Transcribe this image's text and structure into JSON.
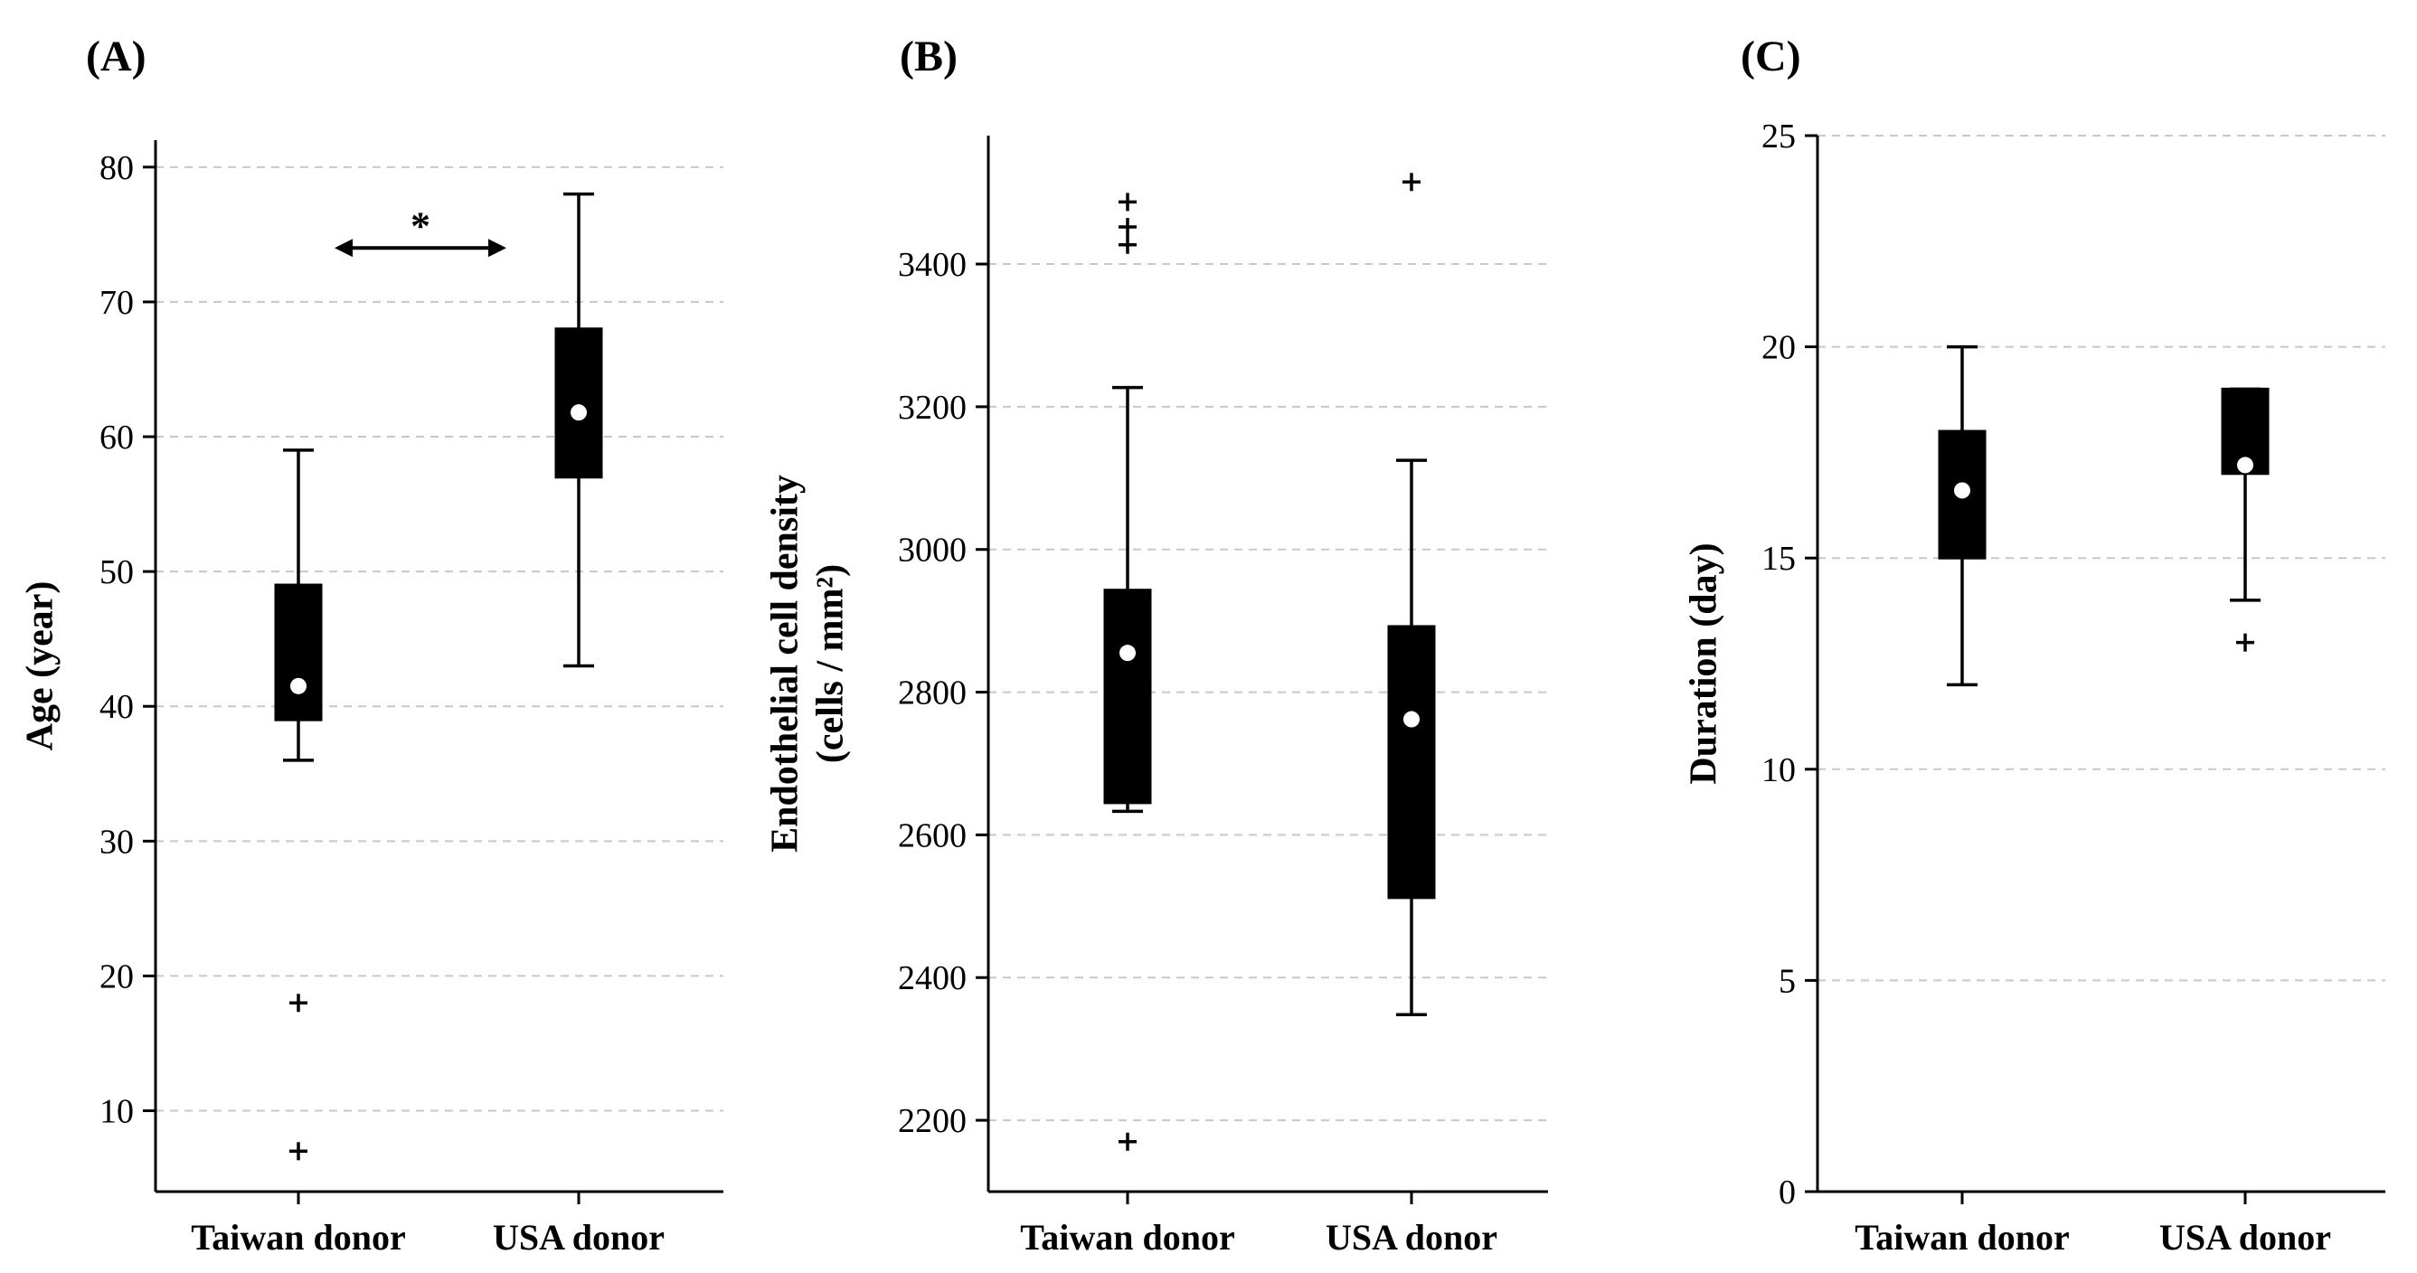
{
  "chart_data": [
    {
      "type": "box",
      "panel_label": "(A)",
      "ylabel": "Age (year)",
      "ylabel_lines": [
        "Age (year)"
      ],
      "ylim": [
        4,
        82
      ],
      "yticks": [
        10,
        20,
        30,
        40,
        50,
        60,
        70,
        80
      ],
      "ytick_labels": [
        "10",
        "20",
        "30",
        "40",
        "50",
        "60",
        "70",
        "80"
      ],
      "grid": true,
      "categories": [
        "Taiwan donor",
        "USA donor"
      ],
      "boxes": [
        {
          "category": "Taiwan donor",
          "whisker_low": 36,
          "q1": 39,
          "median": 40,
          "q3": 49,
          "whisker_high": 59,
          "mean": 41.5,
          "outliers": [
            18,
            7
          ]
        },
        {
          "category": "USA donor",
          "whisker_low": 43,
          "q1": 57,
          "median": 62,
          "q3": 68,
          "whisker_high": 78,
          "mean": 61.8,
          "outliers": []
        }
      ],
      "annotation": {
        "text": "*",
        "type": "double-arrow",
        "y": 74,
        "between": [
          "Taiwan donor",
          "USA donor"
        ]
      }
    },
    {
      "type": "box",
      "panel_label": "(B)",
      "ylabel": "Endothelial cell density (cells / mm²)",
      "ylabel_lines": [
        "Endothelial cell density",
        "(cells / mm²)"
      ],
      "ylim": [
        2100,
        3580
      ],
      "yticks": [
        2200,
        2400,
        2600,
        2800,
        3000,
        3200,
        3400
      ],
      "ytick_labels": [
        "2200",
        "2400",
        "2600",
        "2800",
        "3000",
        "3200",
        "3400"
      ],
      "grid": true,
      "categories": [
        "Taiwan donor",
        "USA donor"
      ],
      "boxes": [
        {
          "category": "Taiwan donor",
          "whisker_low": 2633,
          "q1": 2645,
          "median": 2860,
          "q3": 2943,
          "whisker_high": 3227,
          "mean": 2855,
          "outliers": [
            3487,
            3452,
            3427,
            2170
          ]
        },
        {
          "category": "USA donor",
          "whisker_low": 2348,
          "q1": 2512,
          "median": 2700,
          "q3": 2892,
          "whisker_high": 3125,
          "mean": 2762,
          "outliers": [
            3515
          ]
        }
      ]
    },
    {
      "type": "box",
      "panel_label": "(C)",
      "ylabel": "Duration (day)",
      "ylabel_lines": [
        "Duration (day)"
      ],
      "ylim": [
        0,
        25
      ],
      "yticks": [
        0,
        5,
        10,
        15,
        20,
        25
      ],
      "ytick_labels": [
        "0",
        "5",
        "10",
        "15",
        "20",
        "25"
      ],
      "grid": true,
      "categories": [
        "Taiwan donor",
        "USA donor"
      ],
      "boxes": [
        {
          "category": "Taiwan donor",
          "whisker_low": 12,
          "q1": 15,
          "median": 17,
          "q3": 18,
          "whisker_high": 20,
          "mean": 16.6,
          "outliers": []
        },
        {
          "category": "USA donor",
          "whisker_low": 14,
          "q1": 17,
          "median": 17,
          "q3": 19,
          "whisker_high": 19,
          "mean": 17.2,
          "outliers": [
            13
          ]
        }
      ]
    }
  ]
}
